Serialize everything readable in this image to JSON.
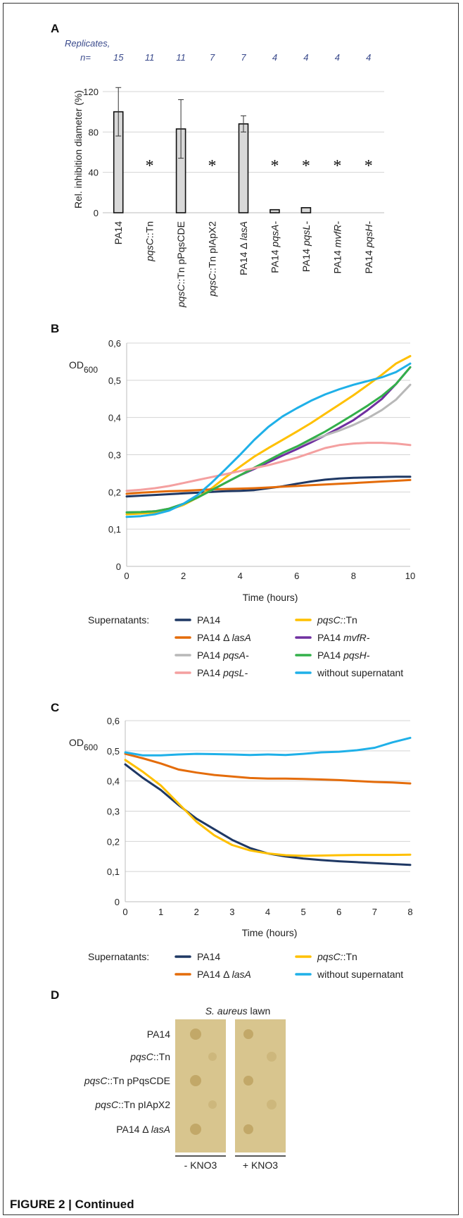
{
  "figure_caption": "FIGURE 2 | Continued",
  "chart_data": [
    {
      "panel": "A",
      "type": "bar",
      "replicates_label": "Replicates,",
      "n_label": "n=",
      "replicates": [
        "15",
        "11",
        "11",
        "7",
        "7",
        "4",
        "4",
        "4",
        "4"
      ],
      "categories": [
        "PA14",
        "pqsC::Tn",
        "pqsC::Tn pPqsCDE",
        "pqsC::Tn pIApX2",
        "PA14 Δ lasA",
        "PA14 pqsA-",
        "PA14 pqsL-",
        "PA14 mvfR-",
        "PA14 pqsH-"
      ],
      "category_parts": [
        [
          {
            "t": "PA14",
            "i": false
          }
        ],
        [
          {
            "t": "pqsC",
            "i": true
          },
          {
            "t": "::Tn",
            "i": false
          }
        ],
        [
          {
            "t": "pqsC",
            "i": true
          },
          {
            "t": "::Tn pPqsCDE",
            "i": false
          }
        ],
        [
          {
            "t": "pqsC",
            "i": true
          },
          {
            "t": "::Tn pIApX2",
            "i": false
          }
        ],
        [
          {
            "t": "PA14 Δ ",
            "i": false
          },
          {
            "t": "lasA",
            "i": true
          }
        ],
        [
          {
            "t": "PA14 ",
            "i": false
          },
          {
            "t": "pqsA-",
            "i": true
          }
        ],
        [
          {
            "t": "PA14 ",
            "i": false
          },
          {
            "t": "pqsL-",
            "i": true
          }
        ],
        [
          {
            "t": "PA14 ",
            "i": false
          },
          {
            "t": "mvfR-",
            "i": true
          }
        ],
        [
          {
            "t": "PA14 ",
            "i": false
          },
          {
            "t": "pqsH-",
            "i": true
          }
        ]
      ],
      "values": [
        100,
        0,
        83,
        0,
        88,
        3,
        5,
        0,
        0
      ],
      "error_plus": [
        24,
        0,
        29,
        0,
        8,
        0,
        0,
        0,
        0
      ],
      "error_minus": [
        24,
        0,
        29,
        0,
        8,
        0,
        0,
        0,
        0
      ],
      "significant": [
        false,
        true,
        false,
        true,
        false,
        true,
        true,
        true,
        true
      ],
      "significance_mark": "*",
      "ylabel": "Rel. inhibition diameter (%)",
      "ylim": [
        0,
        120
      ],
      "yticks": [
        "0",
        "40",
        "80",
        "120"
      ],
      "bar_color": "#d9d9d9",
      "grid": true
    },
    {
      "panel": "B",
      "type": "line",
      "ylabel_main": "OD",
      "ylabel_sub": "600",
      "xlabel": "Time (hours)",
      "xlim": [
        0,
        10
      ],
      "ylim": [
        0,
        0.6
      ],
      "xticks": [
        "0",
        "2",
        "4",
        "6",
        "8",
        "10"
      ],
      "yticks": [
        "0",
        "0,1",
        "0,2",
        "0,3",
        "0,4",
        "0,5",
        "0,6"
      ],
      "x": [
        0,
        0.5,
        1,
        1.5,
        2,
        2.5,
        3,
        3.5,
        4,
        4.5,
        5,
        5.5,
        6,
        6.5,
        7,
        7.5,
        8,
        8.5,
        9,
        9.5,
        10
      ],
      "legend_title": "Supernatants:",
      "series": [
        {
          "name": "PA14",
          "color": "#1f3864",
          "values": [
            0.188,
            0.19,
            0.192,
            0.194,
            0.196,
            0.198,
            0.2,
            0.202,
            0.203,
            0.205,
            0.21,
            0.215,
            0.222,
            0.228,
            0.233,
            0.236,
            0.238,
            0.239,
            0.24,
            0.241,
            0.241
          ]
        },
        {
          "name": "pqsC::Tn",
          "color": "#ffc000",
          "values": [
            0.14,
            0.142,
            0.145,
            0.152,
            0.165,
            0.185,
            0.21,
            0.24,
            0.268,
            0.295,
            0.318,
            0.34,
            0.362,
            0.385,
            0.41,
            0.435,
            0.46,
            0.487,
            0.515,
            0.545,
            0.565
          ]
        },
        {
          "name": "PA14 Δ lasA",
          "color": "#e46c0a",
          "values": [
            0.195,
            0.198,
            0.2,
            0.202,
            0.203,
            0.205,
            0.207,
            0.208,
            0.209,
            0.21,
            0.212,
            0.214,
            0.216,
            0.218,
            0.22,
            0.222,
            0.224,
            0.226,
            0.228,
            0.23,
            0.232
          ]
        },
        {
          "name": "PA14 mvfR-",
          "color": "#7030a0",
          "values": [
            0.145,
            0.146,
            0.148,
            0.155,
            0.168,
            0.185,
            0.205,
            0.225,
            0.245,
            0.262,
            0.28,
            0.298,
            0.315,
            0.333,
            0.352,
            0.372,
            0.393,
            0.42,
            0.45,
            0.49,
            0.535
          ]
        },
        {
          "name": "PA14 pqsA-",
          "color": "#b8b8b8",
          "values": [
            0.145,
            0.146,
            0.148,
            0.155,
            0.168,
            0.185,
            0.205,
            0.225,
            0.245,
            0.265,
            0.285,
            0.305,
            0.322,
            0.338,
            0.352,
            0.365,
            0.38,
            0.398,
            0.42,
            0.448,
            0.488
          ]
        },
        {
          "name": "PA14 pqsH-",
          "color": "#33b04a",
          "values": [
            0.145,
            0.146,
            0.148,
            0.155,
            0.168,
            0.185,
            0.205,
            0.225,
            0.245,
            0.265,
            0.285,
            0.305,
            0.322,
            0.342,
            0.362,
            0.385,
            0.408,
            0.432,
            0.458,
            0.49,
            0.535
          ]
        },
        {
          "name": "PA14 pqsL-",
          "color": "#f4a0a0",
          "values": [
            0.203,
            0.206,
            0.21,
            0.216,
            0.224,
            0.232,
            0.24,
            0.248,
            0.256,
            0.264,
            0.272,
            0.282,
            0.292,
            0.305,
            0.318,
            0.326,
            0.33,
            0.332,
            0.332,
            0.33,
            0.326
          ]
        },
        {
          "name": "without supernatant",
          "color": "#1fb0e8",
          "values": [
            0.133,
            0.135,
            0.14,
            0.15,
            0.168,
            0.192,
            0.225,
            0.262,
            0.3,
            0.34,
            0.375,
            0.403,
            0.425,
            0.445,
            0.462,
            0.476,
            0.488,
            0.498,
            0.508,
            0.522,
            0.545
          ]
        }
      ],
      "legend_names": [
        [
          {
            "t": "PA14",
            "i": false
          }
        ],
        [
          {
            "t": "pqsC:",
            "i": true
          },
          {
            "t": ":Tn",
            "i": false
          }
        ],
        [
          {
            "t": "PA14 Δ ",
            "i": false
          },
          {
            "t": "lasA",
            "i": true
          }
        ],
        [
          {
            "t": "PA14 ",
            "i": false
          },
          {
            "t": "mvfR-",
            "i": true
          }
        ],
        [
          {
            "t": "PA14 ",
            "i": false
          },
          {
            "t": "pqsA-",
            "i": true
          }
        ],
        [
          {
            "t": "PA14 ",
            "i": false
          },
          {
            "t": "pqsH-",
            "i": true
          }
        ],
        [
          {
            "t": "PA14 ",
            "i": false
          },
          {
            "t": "pqsL-",
            "i": true
          }
        ],
        [
          {
            "t": "without supernatant",
            "i": false
          }
        ]
      ],
      "grid": true
    },
    {
      "panel": "C",
      "type": "line",
      "ylabel_main": "OD",
      "ylabel_sub": "600",
      "xlabel": "Time (hours)",
      "xlim": [
        0,
        8
      ],
      "ylim": [
        0,
        0.6
      ],
      "xticks": [
        "0",
        "1",
        "2",
        "3",
        "4",
        "5",
        "6",
        "7",
        "8"
      ],
      "yticks": [
        "0",
        "0,1",
        "0,2",
        "0,3",
        "0,4",
        "0,5",
        "0,6"
      ],
      "x": [
        0,
        0.5,
        1,
        1.5,
        2,
        2.5,
        3,
        3.5,
        4,
        4.5,
        5,
        5.5,
        6,
        6.5,
        7,
        7.5,
        8
      ],
      "legend_title": "Supernatants:",
      "series": [
        {
          "name": "PA14",
          "color": "#1f3864",
          "values": [
            0.455,
            0.41,
            0.37,
            0.32,
            0.275,
            0.24,
            0.205,
            0.178,
            0.16,
            0.15,
            0.143,
            0.138,
            0.134,
            0.131,
            0.128,
            0.125,
            0.122
          ]
        },
        {
          "name": "pqsC::Tn",
          "color": "#ffc000",
          "values": [
            0.47,
            0.43,
            0.385,
            0.325,
            0.265,
            0.22,
            0.188,
            0.17,
            0.16,
            0.154,
            0.152,
            0.153,
            0.154,
            0.155,
            0.155,
            0.155,
            0.156
          ]
        },
        {
          "name": "PA14 Δ lasA",
          "color": "#e46c0a",
          "values": [
            0.49,
            0.475,
            0.458,
            0.438,
            0.428,
            0.42,
            0.415,
            0.41,
            0.408,
            0.408,
            0.407,
            0.405,
            0.403,
            0.4,
            0.397,
            0.395,
            0.392
          ]
        },
        {
          "name": "without supernatant",
          "color": "#1fb0e8",
          "values": [
            0.495,
            0.485,
            0.485,
            0.488,
            0.49,
            0.489,
            0.488,
            0.486,
            0.488,
            0.486,
            0.49,
            0.495,
            0.497,
            0.502,
            0.51,
            0.528,
            0.543
          ]
        }
      ],
      "legend_names": [
        [
          {
            "t": "PA14",
            "i": false
          }
        ],
        [
          {
            "t": "pqsC:",
            "i": true
          },
          {
            "t": ":Tn",
            "i": false
          }
        ],
        [
          {
            "t": "PA14 Δ ",
            "i": false
          },
          {
            "t": "lasA",
            "i": true
          }
        ],
        [
          {
            "t": "without supernatant",
            "i": false
          }
        ]
      ],
      "grid": true
    }
  ],
  "panel_d": {
    "label": "D",
    "lawn_title_italic": "S. aureus",
    "lawn_title_rest": " lawn",
    "rows": [
      [
        {
          "t": "PA14",
          "i": false
        }
      ],
      [
        {
          "t": "pqsC",
          "i": true
        },
        {
          "t": "::Tn",
          "i": false
        }
      ],
      [
        {
          "t": "pqsC",
          "i": true
        },
        {
          "t": "::Tn pPqsCDE",
          "i": false
        }
      ],
      [
        {
          "t": "pqsC",
          "i": true
        },
        {
          "t": "::Tn pIApX2",
          "i": false
        }
      ],
      [
        {
          "t": "PA14 Δ ",
          "i": false
        },
        {
          "t": "lasA",
          "i": true
        }
      ]
    ],
    "conditions": [
      "- KNO3",
      "+ KNO3"
    ],
    "plate_color": "#d8c58e",
    "spot_color": "#c2a868",
    "spots_left": [
      true,
      false,
      true,
      false,
      true
    ],
    "spots_right": [
      true,
      false,
      true,
      false,
      true
    ]
  }
}
